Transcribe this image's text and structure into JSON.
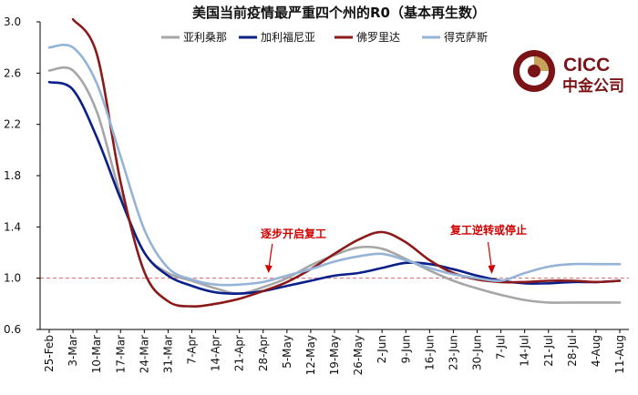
{
  "chart_data": {
    "type": "line",
    "title": "美国当前疫情最严重四个州的R0（基本再生数）",
    "xlabel": "",
    "ylabel": "",
    "ylim": [
      0.6,
      3.0
    ],
    "yticks": [
      "3.0",
      "2.6",
      "2.2",
      "1.8",
      "1.4",
      "1.0",
      "0.6"
    ],
    "ytick_values": [
      3.0,
      2.6,
      2.2,
      1.8,
      1.4,
      1.0,
      0.6
    ],
    "categories": [
      "25-Feb",
      "3-Mar",
      "10-Mar",
      "17-Mar",
      "24-Mar",
      "31-Mar",
      "7-Apr",
      "14-Apr",
      "21-Apr",
      "28-Apr",
      "5-May",
      "12-May",
      "19-May",
      "26-May",
      "2-Jun",
      "9-Jun",
      "16-Jun",
      "23-Jun",
      "30-Jun",
      "7-Jul",
      "14-Jul",
      "21-Jul",
      "28-Jul",
      "4-Aug",
      "11-Aug"
    ],
    "reference_line": {
      "value": 1.0,
      "style": "dashed",
      "color": "#e06666"
    },
    "series": [
      {
        "name": "亚利桑那",
        "color": "#a6a6a6",
        "values": [
          2.62,
          2.62,
          2.3,
          1.65,
          1.2,
          1.04,
          0.98,
          0.92,
          0.88,
          0.93,
          1.0,
          1.1,
          1.18,
          1.24,
          1.23,
          1.15,
          1.06,
          0.98,
          0.92,
          0.87,
          0.83,
          0.81,
          0.81,
          0.81,
          0.81
        ]
      },
      {
        "name": "加利福尼亚",
        "color": "#0b1f8a",
        "values": [
          2.53,
          2.47,
          2.1,
          1.62,
          1.2,
          1.02,
          0.94,
          0.89,
          0.88,
          0.9,
          0.94,
          0.98,
          1.02,
          1.04,
          1.08,
          1.12,
          1.11,
          1.07,
          1.02,
          0.98,
          0.96,
          0.96,
          0.97,
          0.97,
          0.98
        ]
      },
      {
        "name": "佛罗里达",
        "color": "#8b1a1a",
        "values": [
          null,
          3.02,
          2.75,
          1.75,
          1.05,
          0.82,
          0.78,
          0.8,
          0.84,
          0.9,
          0.97,
          1.07,
          1.19,
          1.3,
          1.36,
          1.28,
          1.14,
          1.04,
          0.99,
          0.97,
          0.97,
          0.98,
          0.98,
          0.97,
          0.98
        ]
      },
      {
        "name": "得克萨斯",
        "color": "#95b3d7",
        "values": [
          2.8,
          2.8,
          2.52,
          1.95,
          1.38,
          1.08,
          0.99,
          0.95,
          0.95,
          0.97,
          1.02,
          1.07,
          1.13,
          1.17,
          1.19,
          1.14,
          1.08,
          1.03,
          1.0,
          0.98,
          1.04,
          1.09,
          1.11,
          1.11,
          1.11
        ]
      }
    ],
    "annotations": [
      {
        "text": "逐步开启复工",
        "at": "28-Apr",
        "value": 1.0
      },
      {
        "text": "复工逆转或停止",
        "at": "30-Jun",
        "value": 1.0
      }
    ]
  },
  "logo": {
    "line1": "CICC",
    "line2": "中金公司",
    "color": "#7b1416"
  }
}
